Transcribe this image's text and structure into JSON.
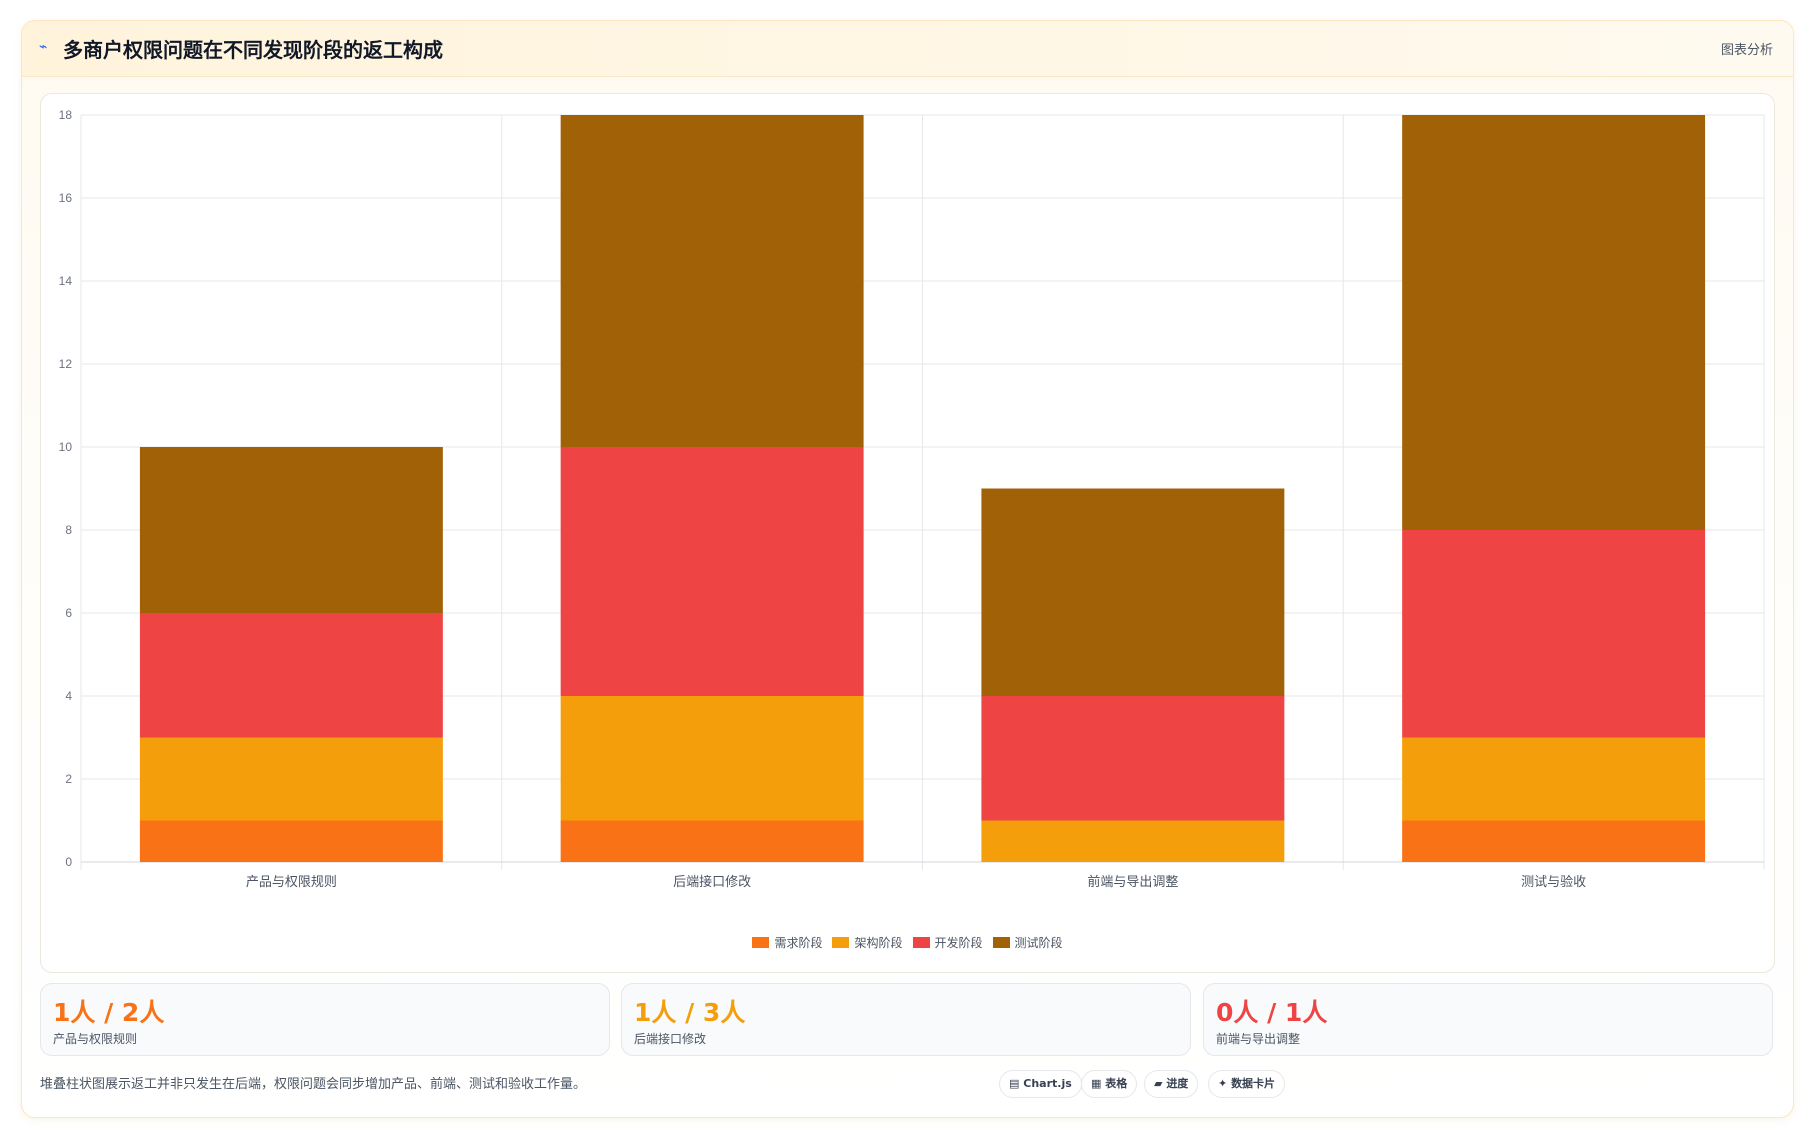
{
  "header": {
    "icon": "trend-line-icon",
    "title": "多商户权限问题在不同发现阶段的返工构成",
    "action_label": "图表分析"
  },
  "chart_data": {
    "type": "bar",
    "stacked": true,
    "categories": [
      "产品与权限规则",
      "后端接口修改",
      "前端与导出调整",
      "测试与验收"
    ],
    "series": [
      {
        "name": "需求阶段",
        "color": "#f97316",
        "values": [
          1,
          1,
          0,
          1
        ]
      },
      {
        "name": "架构阶段",
        "color": "#f59e0b",
        "values": [
          2,
          3,
          1,
          2
        ]
      },
      {
        "name": "开发阶段",
        "color": "#ef4444",
        "values": [
          3,
          6,
          3,
          5
        ]
      },
      {
        "name": "测试阶段",
        "color": "#a16207",
        "values": [
          4,
          8,
          5,
          10
        ]
      }
    ],
    "ylim": [
      0,
      18
    ],
    "yticks": [
      "0",
      "2",
      "4",
      "6",
      "8",
      "10",
      "12",
      "14",
      "16",
      "18"
    ],
    "grid": true,
    "legend_position": "bottom"
  },
  "stats": [
    {
      "value": "1人 / 2人",
      "label": "产品与权限规则",
      "color": "#f97316"
    },
    {
      "value": "1人 / 3人",
      "label": "后端接口修改",
      "color": "#f59e0b"
    },
    {
      "value": "0人 / 1人",
      "label": "前端与导出调整",
      "color": "#ef4444"
    }
  ],
  "footer": {
    "note": "堆叠柱状图展示返工并非只发生在后端，权限问题会同步增加产品、前端、测试和验收工作量。",
    "chips": [
      {
        "icon": "chart-icon",
        "glyph": "▤",
        "label": "Chart.js"
      },
      {
        "icon": "table-icon",
        "glyph": "▦",
        "label": "表格"
      },
      {
        "icon": "progress-icon",
        "glyph": "▰",
        "label": "进度"
      },
      {
        "icon": "sparkle-icon",
        "glyph": "✦",
        "label": "数据卡片"
      }
    ]
  }
}
